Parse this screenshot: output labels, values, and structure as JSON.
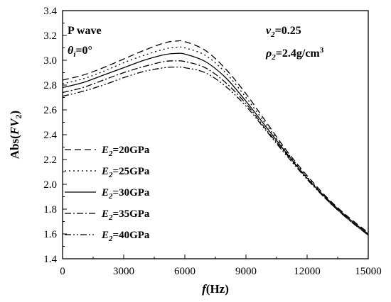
{
  "chart_data": {
    "type": "line",
    "xlabel": {
      "italic": "f",
      "rest": "(Hz)"
    },
    "ylabel": {
      "prefix": "Abs(",
      "italic": "FV",
      "sub": "2",
      "suffix": ")"
    },
    "xlim": [
      0,
      15000
    ],
    "ylim": [
      1.4,
      3.4
    ],
    "x_ticks": [
      "0",
      "3000",
      "6000",
      "9000",
      "12000",
      "15000"
    ],
    "y_ticks": [
      "1.4",
      "1.6",
      "1.8",
      "2.0",
      "2.2",
      "2.4",
      "2.6",
      "2.8",
      "3.0",
      "3.2",
      "3.4"
    ],
    "grid": false,
    "annotations": {
      "wave": "P wave",
      "theta": {
        "sym": "θ",
        "sub": "i",
        "val": "=0°"
      },
      "nu": {
        "sym": "ν",
        "sub": "2",
        "val": "=0.25"
      },
      "rho": {
        "sym": "ρ",
        "sub": "2",
        "val": "=2.4g/cm",
        "sup": "3"
      }
    },
    "legend_position": "left",
    "x": [
      0,
      1000,
      2000,
      3000,
      4000,
      5000,
      5600,
      6000,
      7000,
      8000,
      9000,
      10000,
      11000,
      12000,
      13000,
      14000,
      15000
    ],
    "series": [
      {
        "name": {
          "sym": "E",
          "sub": "2",
          "val": "=20GPa"
        },
        "dash": "9,5",
        "values": [
          2.84,
          2.88,
          2.94,
          3.01,
          3.08,
          3.14,
          3.155,
          3.15,
          3.08,
          2.93,
          2.73,
          2.5,
          2.27,
          2.07,
          1.89,
          1.74,
          1.61
        ]
      },
      {
        "name": {
          "sym": "E",
          "sub": "2",
          "val": "=25GPa"
        },
        "dash": "2,4",
        "values": [
          2.81,
          2.85,
          2.91,
          2.98,
          3.04,
          3.09,
          3.105,
          3.1,
          3.04,
          2.9,
          2.7,
          2.48,
          2.26,
          2.06,
          1.88,
          1.73,
          1.6
        ]
      },
      {
        "name": {
          "sym": "E",
          "sub": "2",
          "val": "=30GPa"
        },
        "dash": "",
        "values": [
          2.78,
          2.82,
          2.88,
          2.94,
          3.0,
          3.045,
          3.055,
          3.05,
          2.99,
          2.86,
          2.67,
          2.46,
          2.25,
          2.05,
          1.88,
          1.73,
          1.6
        ]
      },
      {
        "name": {
          "sym": "E",
          "sub": "2",
          "val": "=35GPa"
        },
        "dash": "9,3,2,3",
        "values": [
          2.74,
          2.78,
          2.84,
          2.9,
          2.95,
          2.99,
          2.995,
          2.99,
          2.94,
          2.82,
          2.65,
          2.44,
          2.24,
          2.05,
          1.87,
          1.72,
          1.59
        ]
      },
      {
        "name": {
          "sym": "E",
          "sub": "2",
          "val": "=40GPa"
        },
        "dash": "9,3,2,3,2,3",
        "values": [
          2.71,
          2.75,
          2.8,
          2.86,
          2.91,
          2.94,
          2.945,
          2.94,
          2.9,
          2.79,
          2.63,
          2.43,
          2.23,
          2.04,
          1.87,
          1.72,
          1.59
        ]
      }
    ]
  }
}
